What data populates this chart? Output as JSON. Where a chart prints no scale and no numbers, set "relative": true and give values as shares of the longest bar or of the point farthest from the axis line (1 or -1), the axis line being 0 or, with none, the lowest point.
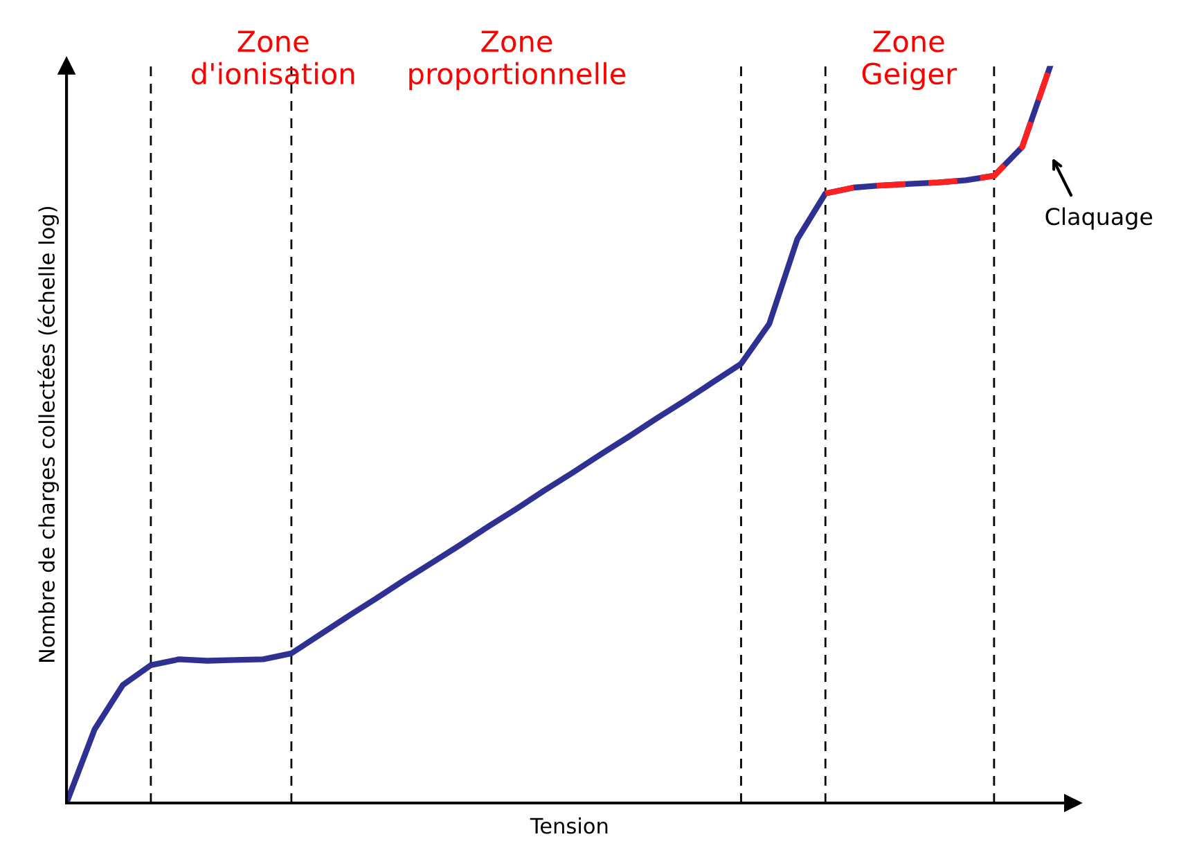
{
  "chart_data": {
    "type": "line",
    "relative": true,
    "marker": "none",
    "grid": "x",
    "xlabel": "Tension",
    "ylabel": "Nombre de charges collectées (échelle log)",
    "categories": [
      null,
      null,
      null,
      null,
      null,
      null,
      null,
      null,
      null,
      null,
      null,
      null,
      null,
      null,
      null,
      null,
      null,
      null,
      null,
      null,
      null,
      null,
      null,
      null,
      null,
      null,
      null,
      null,
      null,
      null,
      null,
      null,
      null,
      null,
      null,
      null
    ],
    "series": [
      {
        "color": "#2e3192",
        "line_style": "solid",
        "values": [
          0,
          0.1,
          0.16,
          0.187,
          0.195,
          0.193,
          0.194,
          0.195,
          0.203,
          0.228,
          0.253,
          0.277,
          0.302,
          0.326,
          0.35,
          0.375,
          0.399,
          0.424,
          0.448,
          0.473,
          0.497,
          0.522,
          0.546,
          0.571,
          0.596,
          0.65,
          0.765,
          0.827,
          0.835,
          0.838,
          0.84,
          0.842,
          0.845,
          0.851,
          0.89,
          1.0
        ]
      },
      {
        "color": "#ff2020",
        "line_style": "dashed",
        "values": [
          null,
          null,
          null,
          null,
          null,
          null,
          null,
          null,
          null,
          null,
          null,
          null,
          null,
          null,
          null,
          null,
          null,
          null,
          null,
          null,
          null,
          null,
          null,
          null,
          null,
          null,
          null,
          0.827,
          0.835,
          0.838,
          0.84,
          0.842,
          0.845,
          0.851,
          0.89,
          1.0
        ]
      }
    ],
    "annotations": [
      "Zone\nd'ionisation",
      "Zone\nproportionnelle",
      "Zone\nGeiger",
      "Claquage"
    ]
  }
}
